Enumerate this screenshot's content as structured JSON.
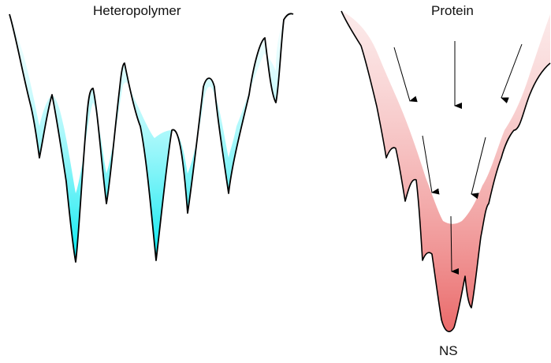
{
  "panels": [
    {
      "title": "Heteropolymer",
      "fill_color": "#00e8f0"
    },
    {
      "title": "Protein",
      "fill_color": "#ea6a6a",
      "bottom_label": "NS"
    }
  ],
  "arrow_color": "#000000",
  "outline_color": "#000000"
}
